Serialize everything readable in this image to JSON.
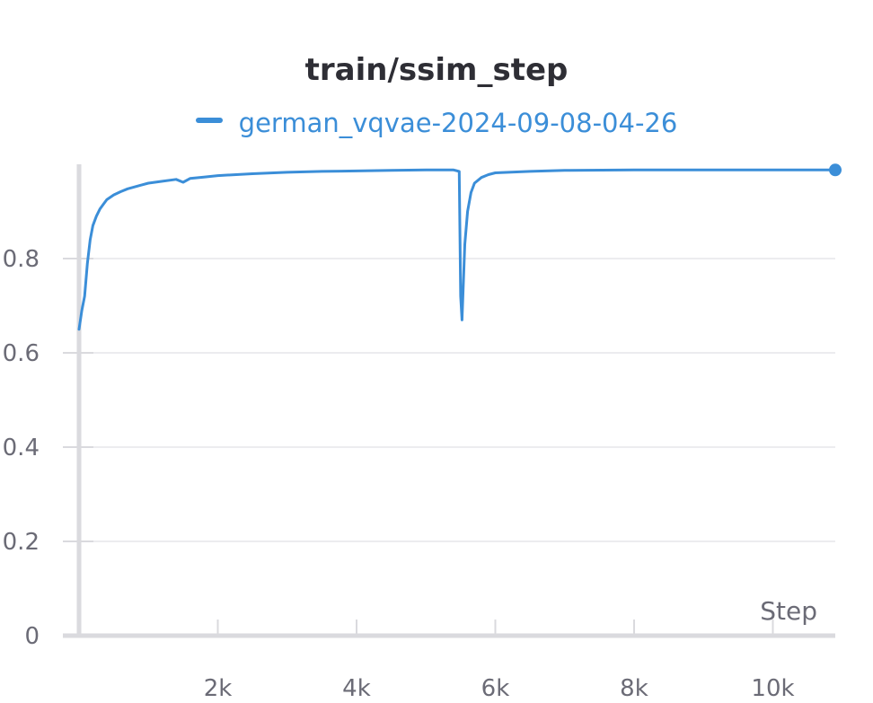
{
  "chart_data": {
    "type": "line",
    "title": "train/ssim_step",
    "xlabel": "Step",
    "ylabel": "",
    "xlim": [
      0,
      10900
    ],
    "ylim": [
      0,
      1.0
    ],
    "x_ticks": [
      2000,
      4000,
      6000,
      8000,
      10000
    ],
    "x_tick_labels": [
      "2k",
      "4k",
      "6k",
      "8k",
      "10k"
    ],
    "y_ticks": [
      0,
      0.2,
      0.4,
      0.6,
      0.8
    ],
    "y_tick_labels": [
      "0",
      "0.2",
      "0.4",
      "0.6",
      "0.8"
    ],
    "grid": true,
    "legend_position": "top-center",
    "colors": {
      "series": "#3b8ed8",
      "grid": "#e6e6ea",
      "axis": "#dadade",
      "text": "#6b6b76",
      "title": "#2e2e35"
    },
    "series": [
      {
        "name": "german_vqvae-2024-09-08-04-26",
        "x": [
          0,
          40,
          80,
          120,
          160,
          200,
          250,
          300,
          350,
          400,
          500,
          600,
          700,
          800,
          900,
          1000,
          1200,
          1400,
          1500,
          1600,
          1800,
          2000,
          2500,
          3000,
          3500,
          4000,
          4500,
          5000,
          5400,
          5480,
          5500,
          5520,
          5560,
          5600,
          5650,
          5700,
          5800,
          5900,
          6000,
          6500,
          7000,
          8000,
          9000,
          10000,
          10900
        ],
        "values": [
          0.65,
          0.69,
          0.72,
          0.79,
          0.84,
          0.87,
          0.89,
          0.905,
          0.915,
          0.925,
          0.935,
          0.942,
          0.948,
          0.952,
          0.956,
          0.96,
          0.964,
          0.968,
          0.962,
          0.97,
          0.973,
          0.976,
          0.98,
          0.983,
          0.985,
          0.986,
          0.987,
          0.988,
          0.988,
          0.985,
          0.72,
          0.67,
          0.83,
          0.9,
          0.94,
          0.96,
          0.972,
          0.978,
          0.982,
          0.985,
          0.987,
          0.988,
          0.988,
          0.988,
          0.988
        ]
      }
    ]
  }
}
